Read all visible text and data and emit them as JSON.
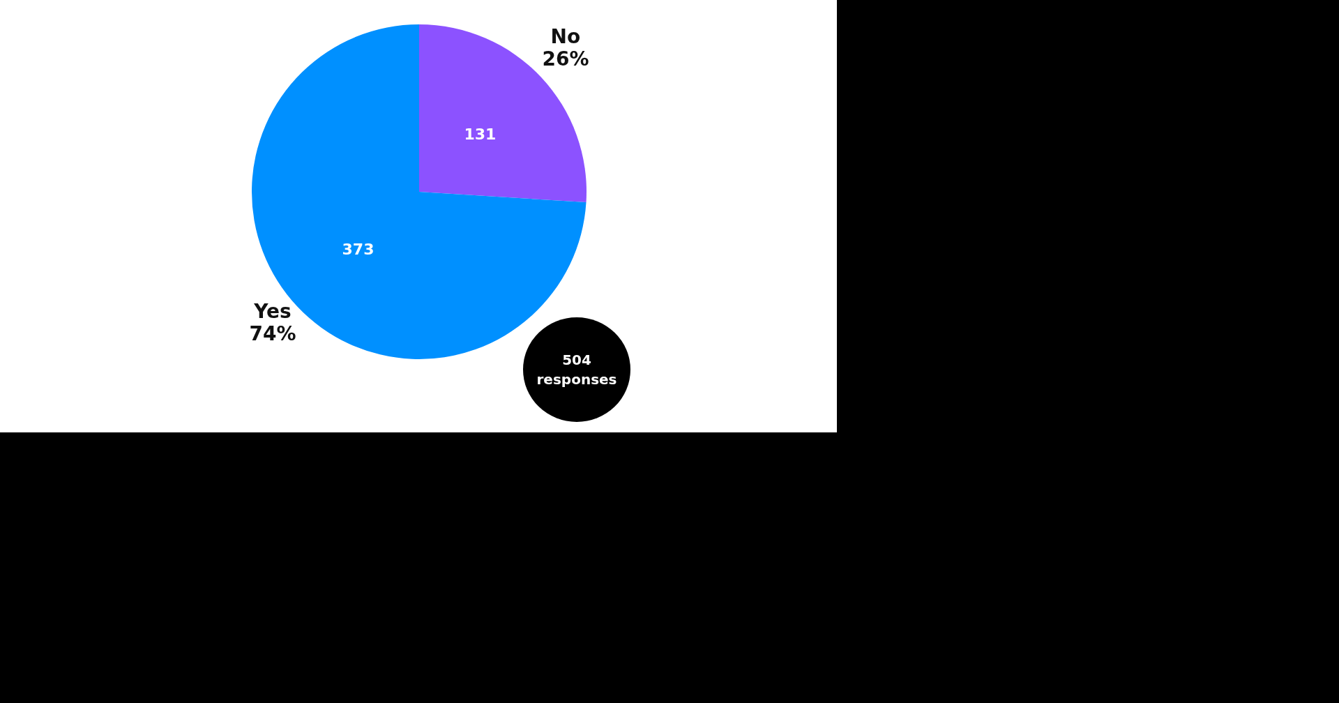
{
  "chart_data": {
    "type": "pie",
    "categories": [
      "No",
      "Yes"
    ],
    "values": [
      26,
      74
    ],
    "colors": [
      "#8c52ff",
      "#0090ff"
    ],
    "value_labels": [
      "26%",
      "74%"
    ],
    "annotations": [
      {
        "text": "131",
        "x": "No"
      },
      {
        "text": "373",
        "x": "Yes"
      },
      "504 responses"
    ],
    "legend": false
  }
}
